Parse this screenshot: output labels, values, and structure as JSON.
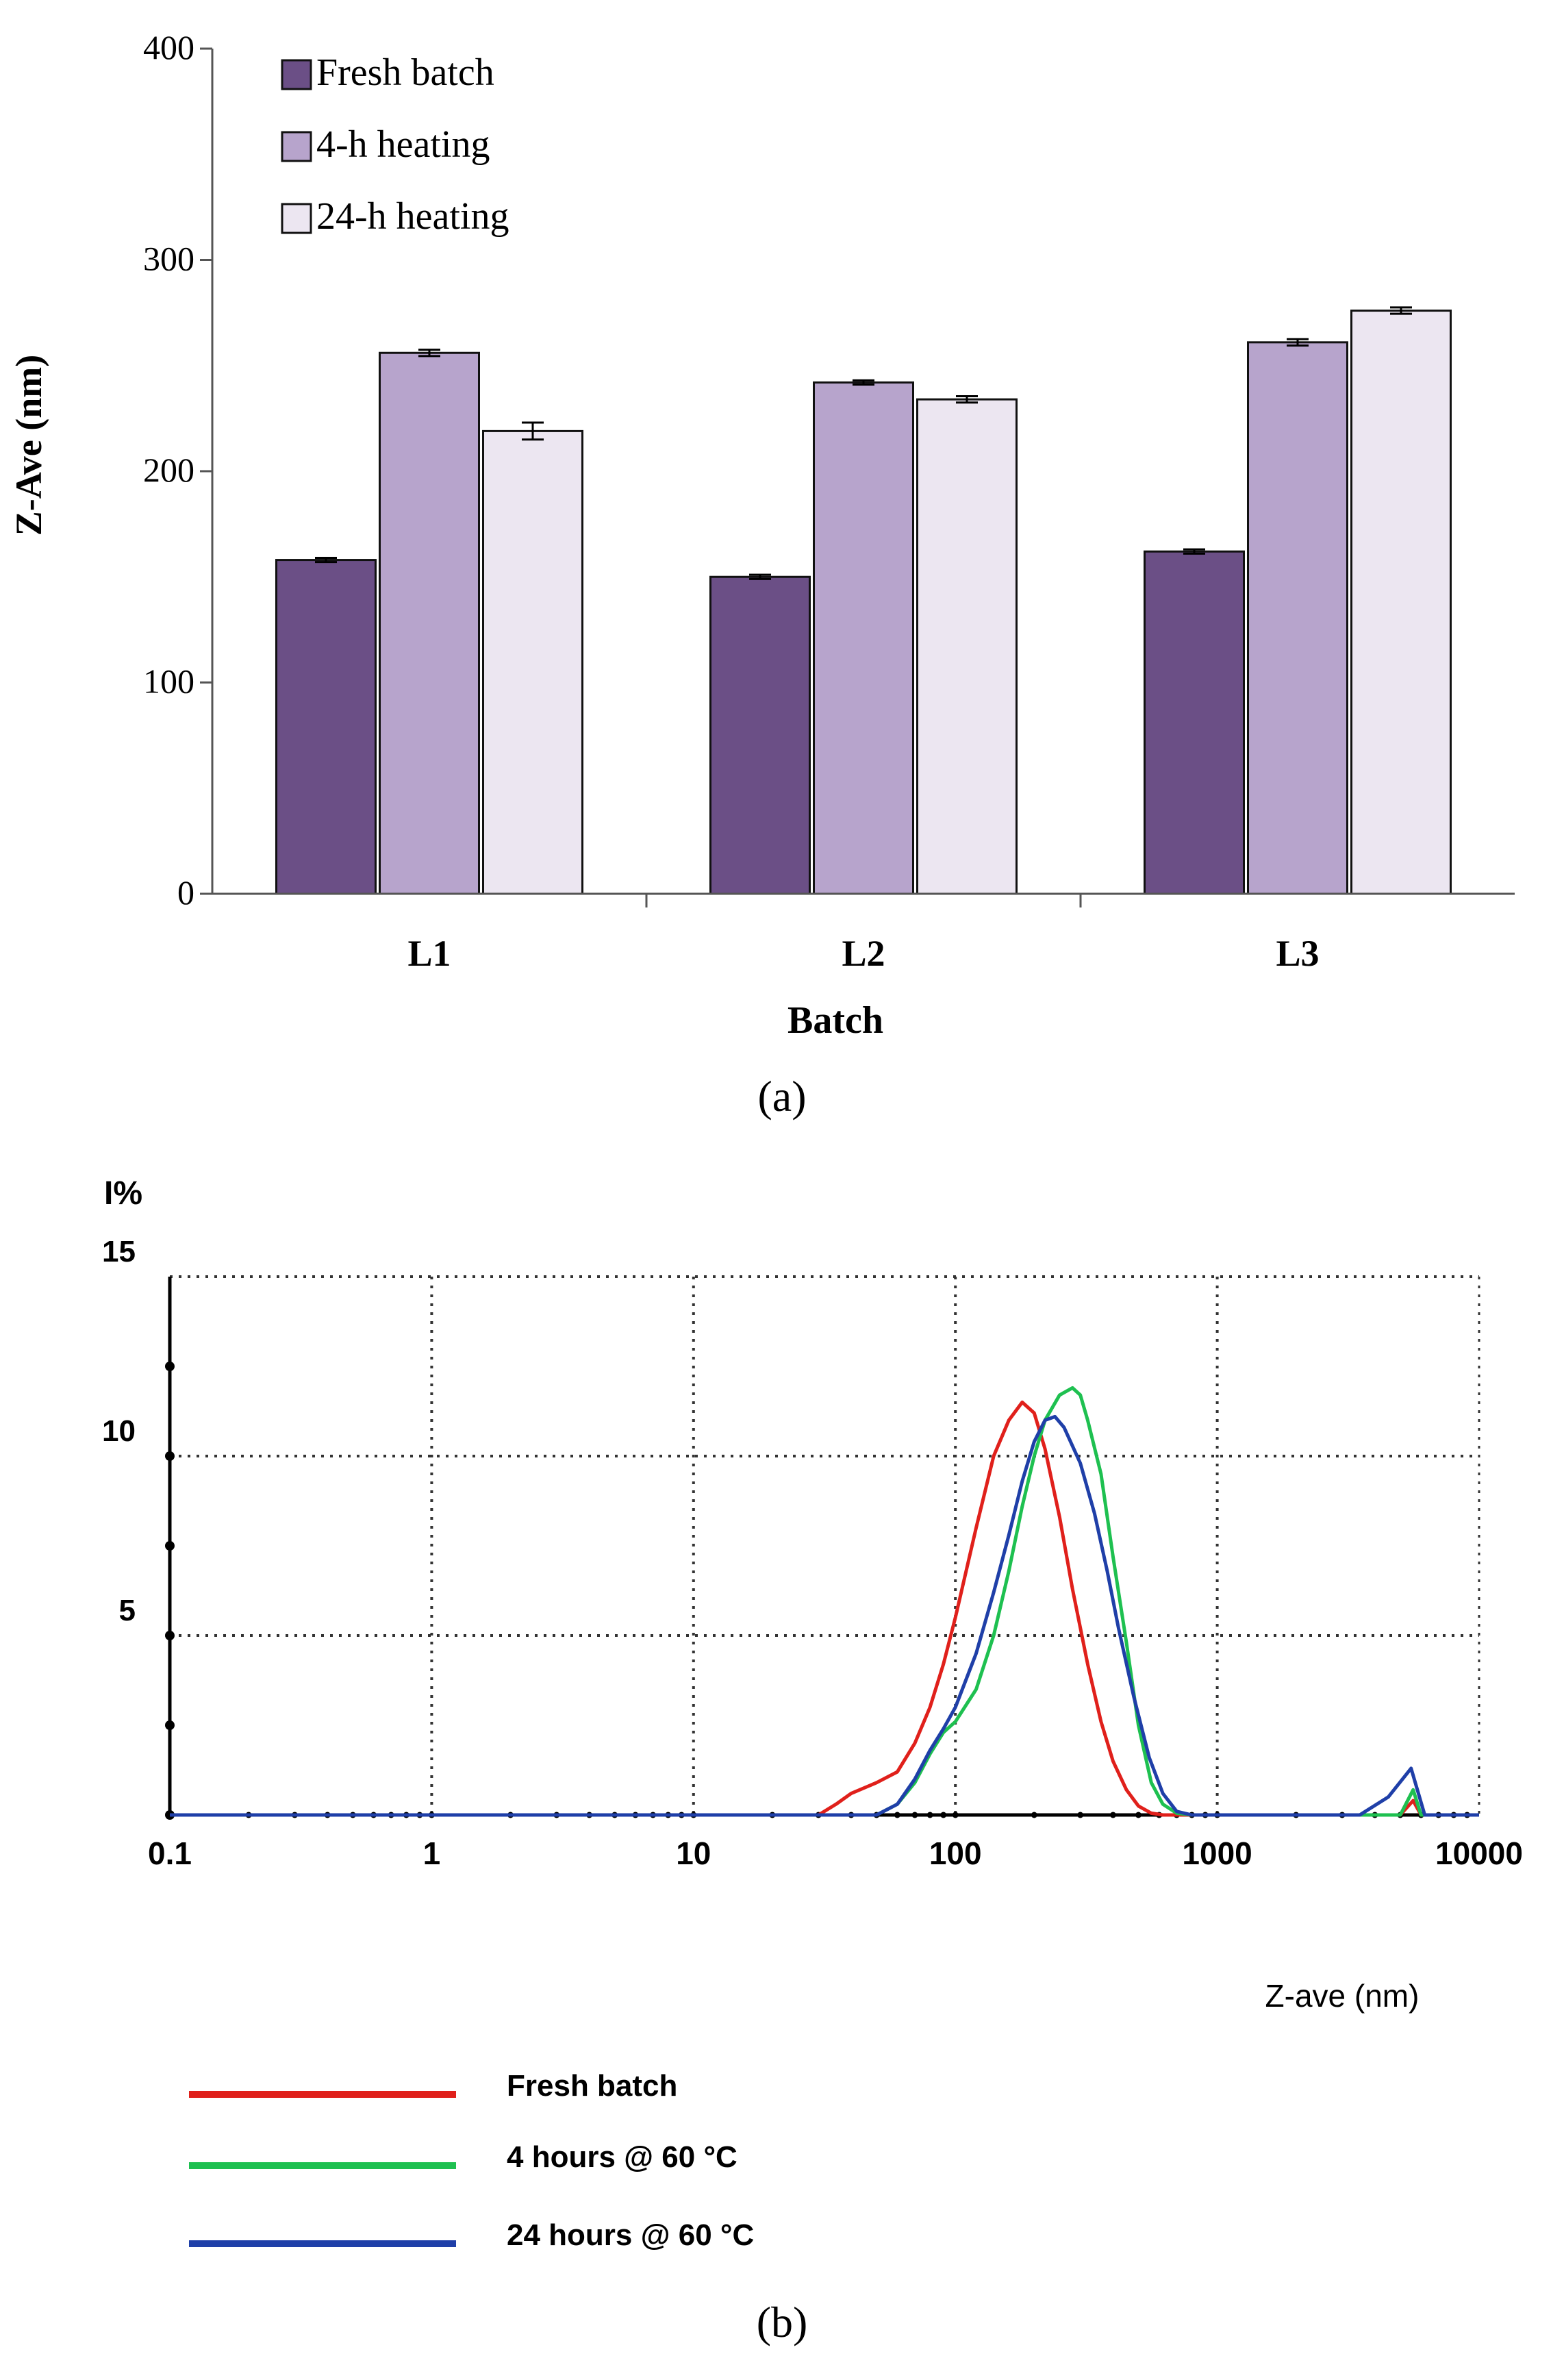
{
  "colors": {
    "fresh": "#6b4f86",
    "h4": "#b7a4cc",
    "h24": "#ece6f1",
    "line_fresh": "#e0201b",
    "line_4h": "#1ec050",
    "line_24h": "#1f3fa8"
  },
  "chart_data": [
    {
      "type": "bar",
      "panel_label": "(a)",
      "title": "",
      "xlabel": "Batch",
      "ylabel": "Z-Ave  (nm)",
      "categories": [
        "L1",
        "L2",
        "L3"
      ],
      "ylim": [
        0,
        400
      ],
      "yticks": [
        "0",
        "100",
        "200",
        "300",
        "400"
      ],
      "legend_position": "top-left",
      "series": [
        {
          "name": "Fresh batch",
          "values": [
            158,
            150,
            162
          ],
          "errors": [
            1,
            1,
            1
          ]
        },
        {
          "name": "4-h heating",
          "values": [
            256,
            242,
            261
          ],
          "errors": [
            1.5,
            1,
            1.5
          ]
        },
        {
          "name": "24-h heating",
          "values": [
            219,
            234,
            276
          ],
          "errors": [
            4,
            1.5,
            1.5
          ]
        }
      ]
    },
    {
      "type": "line",
      "panel_label": "(b)",
      "title": "",
      "xlabel": "Z-ave (nm)",
      "ylabel": "I%",
      "xscale": "log",
      "xlim": [
        0.1,
        10000
      ],
      "ylim": [
        0,
        15
      ],
      "xticks": [
        "0.1",
        "1",
        "10",
        "100",
        "1000",
        "10000"
      ],
      "yticks": [
        "5",
        "10",
        "15"
      ],
      "grid": true,
      "legend_position": "bottom",
      "series": [
        {
          "name": "Fresh batch",
          "x": [
            0.1,
            30,
            35,
            40,
            50,
            60,
            70,
            80,
            90,
            100,
            120,
            140,
            160,
            180,
            200,
            220,
            250,
            280,
            320,
            360,
            400,
            450,
            500,
            560,
            620,
            700,
            5000,
            5600,
            6000,
            10000
          ],
          "y": [
            0,
            0,
            0.3,
            0.6,
            0.9,
            1.2,
            2.0,
            3.0,
            4.2,
            5.5,
            8.0,
            10.0,
            11.0,
            11.5,
            11.2,
            10.2,
            8.3,
            6.3,
            4.2,
            2.6,
            1.5,
            0.7,
            0.25,
            0.05,
            0,
            0,
            0,
            0.4,
            0,
            0
          ]
        },
        {
          "name": "4 hours @ 60 °C",
          "x": [
            0.1,
            50,
            60,
            70,
            80,
            90,
            100,
            120,
            140,
            160,
            180,
            200,
            220,
            250,
            280,
            300,
            320,
            360,
            400,
            450,
            500,
            560,
            620,
            700,
            800,
            5000,
            5600,
            6000,
            10000
          ],
          "y": [
            0,
            0,
            0.3,
            0.9,
            1.7,
            2.3,
            2.6,
            3.5,
            5.0,
            6.8,
            8.6,
            10.0,
            11.0,
            11.7,
            11.9,
            11.7,
            11.0,
            9.5,
            7.2,
            4.8,
            2.5,
            0.9,
            0.3,
            0.05,
            0,
            0,
            0.7,
            0,
            0
          ]
        },
        {
          "name": "24 hours @ 60 °C",
          "x": [
            0.1,
            50,
            60,
            70,
            80,
            90,
            100,
            120,
            140,
            160,
            180,
            200,
            220,
            240,
            260,
            300,
            340,
            380,
            420,
            480,
            550,
            620,
            700,
            800,
            3500,
            4500,
            5500,
            6200,
            10000
          ],
          "y": [
            0,
            0,
            0.3,
            1.0,
            1.8,
            2.4,
            3.0,
            4.5,
            6.2,
            7.8,
            9.3,
            10.4,
            11.0,
            11.1,
            10.8,
            9.8,
            8.4,
            6.8,
            5.2,
            3.3,
            1.6,
            0.6,
            0.1,
            0,
            0,
            0.5,
            1.3,
            0,
            0
          ]
        }
      ]
    }
  ]
}
